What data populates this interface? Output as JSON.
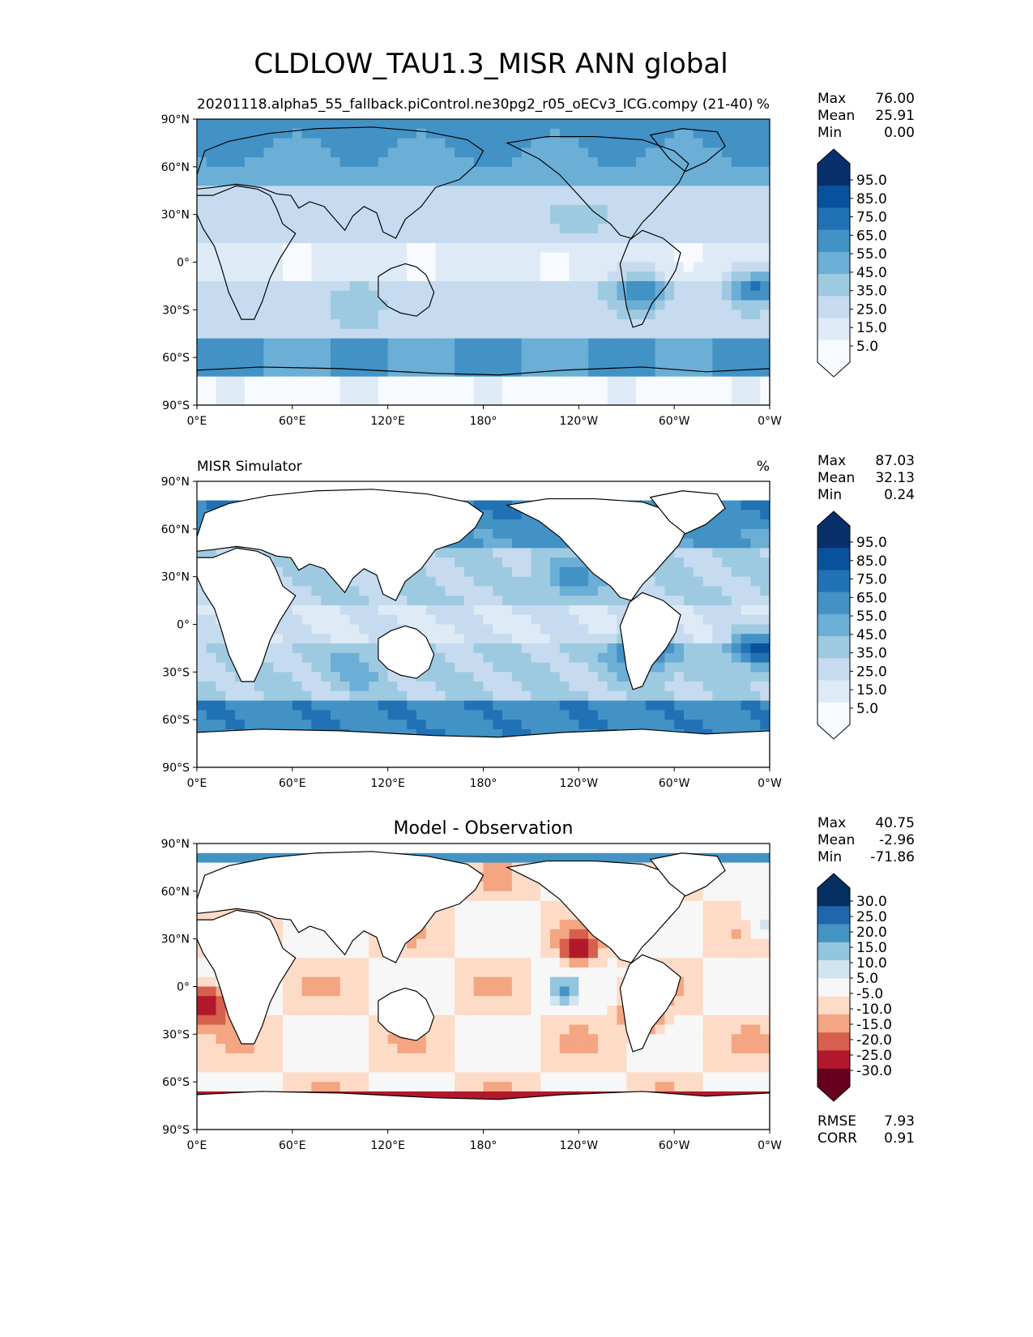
{
  "figure": {
    "title": "CLDLOW_TAU1.3_MISR ANN global"
  },
  "axes_labels": {
    "lat": [
      "90°N",
      "60°N",
      "30°N",
      "0°",
      "30°S",
      "60°S",
      "90°S"
    ],
    "lon": [
      "0°E",
      "60°E",
      "120°E",
      "180°",
      "120°W",
      "60°W",
      "0°W"
    ]
  },
  "colors": {
    "seq": [
      "#f7fbff",
      "#deebf7",
      "#c6dbef",
      "#9ecae1",
      "#6baed6",
      "#4292c6",
      "#2171b5",
      "#08519c",
      "#08306b"
    ],
    "div": [
      "#67001f",
      "#b2182b",
      "#d6604d",
      "#f4a582",
      "#fddbc7",
      "#f7f7f7",
      "#d1e5f0",
      "#92c5de",
      "#4393c3",
      "#2166ac",
      "#053061"
    ],
    "land": "#ffffff"
  },
  "chart_data": [
    {
      "type": "heatmap",
      "title": "20201118.alpha5_55_fallback.piControl.ne30pg2_r05_oECv3_ICG.compy (21-40)",
      "units": "%",
      "stats": [
        {
          "label": "Max",
          "value": "76.00"
        },
        {
          "label": "Mean",
          "value": "25.91"
        },
        {
          "label": "Min",
          "value": "0.00"
        }
      ],
      "colorbar": {
        "levels": [
          0,
          5,
          10,
          15,
          20,
          25,
          30,
          35,
          40,
          45,
          50,
          55,
          60,
          65,
          70,
          75,
          80,
          85,
          90,
          95,
          100
        ],
        "tick_labels": [
          "95.0",
          "85.0",
          "75.0",
          "65.0",
          "55.0",
          "45.0",
          "35.0",
          "25.0",
          "15.0",
          "5.0"
        ],
        "extend": "both"
      },
      "xlim": [
        0,
        360
      ],
      "ylim": [
        -90,
        90
      ]
    },
    {
      "type": "heatmap",
      "title": "MISR Simulator",
      "units": "%",
      "stats": [
        {
          "label": "Max",
          "value": "87.03"
        },
        {
          "label": "Mean",
          "value": "32.13"
        },
        {
          "label": "Min",
          "value": "0.24"
        }
      ],
      "colorbar": {
        "levels": [
          0,
          5,
          10,
          15,
          20,
          25,
          30,
          35,
          40,
          45,
          50,
          55,
          60,
          65,
          70,
          75,
          80,
          85,
          90,
          95,
          100
        ],
        "tick_labels": [
          "95.0",
          "85.0",
          "75.0",
          "65.0",
          "55.0",
          "45.0",
          "35.0",
          "25.0",
          "15.0",
          "5.0"
        ],
        "extend": "both"
      },
      "xlim": [
        0,
        360
      ],
      "ylim": [
        -90,
        90
      ]
    },
    {
      "type": "heatmap",
      "title": "Model - Observation",
      "units": "",
      "stats": [
        {
          "label": "Max",
          "value": "40.75"
        },
        {
          "label": "Mean",
          "value": "-2.96"
        },
        {
          "label": "Min",
          "value": "-71.86"
        }
      ],
      "colorbar": {
        "levels": [
          -35,
          -30,
          -25,
          -20,
          -15,
          -10,
          -5,
          5,
          10,
          15,
          20,
          25,
          30,
          35
        ],
        "tick_labels": [
          "30.0",
          "25.0",
          "20.0",
          "15.0",
          "10.0",
          "5.0",
          "-5.0",
          "-10.0",
          "-15.0",
          "-20.0",
          "-25.0",
          "-30.0"
        ],
        "extend": "both"
      },
      "metrics": [
        {
          "label": "RMSE",
          "value": "7.93"
        },
        {
          "label": "CORR",
          "value": "0.91"
        }
      ],
      "xlim": [
        0,
        360
      ],
      "ylim": [
        -90,
        90
      ]
    }
  ]
}
